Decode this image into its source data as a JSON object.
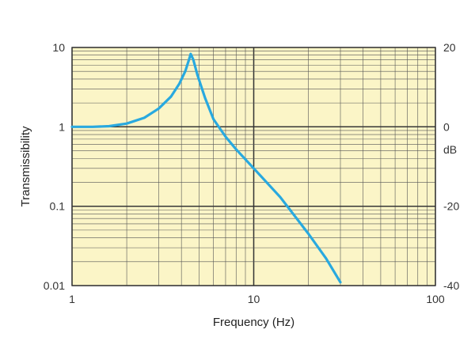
{
  "chart_data": {
    "type": "line",
    "title": "",
    "xlabel": "Frequency (Hz)",
    "ylabel": "Transmissibility",
    "y2label": "dB",
    "x_scale": "log",
    "y_scale": "log",
    "xlim": [
      1,
      100
    ],
    "ylim": [
      0.01,
      10
    ],
    "y2lim": [
      -40,
      20
    ],
    "grid": true,
    "x_ticks": [
      {
        "value": 1,
        "label": "1"
      },
      {
        "value": 10,
        "label": "10"
      },
      {
        "value": 100,
        "label": "100"
      }
    ],
    "y_ticks": [
      {
        "value": 0.01,
        "label": "0.01"
      },
      {
        "value": 0.1,
        "label": "0.1"
      },
      {
        "value": 1,
        "label": "1"
      },
      {
        "value": 10,
        "label": "10"
      }
    ],
    "y2_ticks": [
      {
        "value": 20,
        "label": "20"
      },
      {
        "value": 0,
        "label": "0"
      },
      {
        "value": -20,
        "label": "-20"
      },
      {
        "value": -40,
        "label": "-40"
      }
    ],
    "series": [
      {
        "x": [
          1.0,
          1.3,
          1.6,
          2.0,
          2.5,
          3.0,
          3.5,
          3.9,
          4.2,
          4.4,
          4.5,
          4.65,
          4.9,
          5.4,
          6.0,
          7.0,
          8.0,
          10.0,
          14.0,
          20.0,
          25.0,
          30.0
        ],
        "y": [
          1.0,
          1.0,
          1.02,
          1.1,
          1.3,
          1.7,
          2.4,
          3.5,
          5.0,
          7.0,
          8.3,
          7.0,
          4.5,
          2.3,
          1.25,
          0.75,
          0.52,
          0.3,
          0.13,
          0.045,
          0.022,
          0.011
        ]
      }
    ],
    "colors": {
      "plot_background": "#fbf5c7",
      "line": "#29a9df",
      "grid_major": "#333333",
      "grid_minor": "#555555"
    }
  }
}
